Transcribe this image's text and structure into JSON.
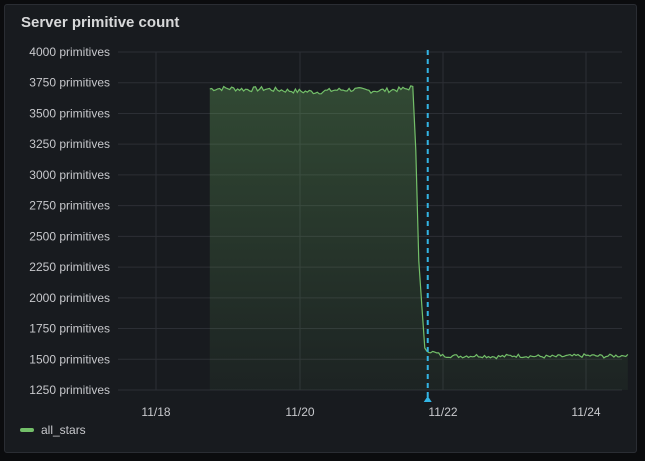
{
  "panel": {
    "title": "Server primitive count"
  },
  "chart_data": {
    "type": "area",
    "title": "Server primitive count",
    "unit": "primitives",
    "y_ticks": [
      "4000 primitives",
      "3750 primitives",
      "3500 primitives",
      "3250 primitives",
      "3000 primitives",
      "2750 primitives",
      "2500 primitives",
      "2250 primitives",
      "2000 primitives",
      "1750 primitives",
      "1500 primitives",
      "1250 primitives"
    ],
    "x_ticks": [
      "11/18",
      "11/20",
      "11/22",
      "11/24"
    ],
    "ylim": [
      1250,
      4000
    ],
    "grid": true,
    "legend_position": "bottom-left",
    "series": [
      {
        "name": "all_stars",
        "color": "#73bf69",
        "points": [
          [
            "11/18 18:00",
            3700
          ],
          [
            "11/19 00:00",
            3705
          ],
          [
            "11/19 06:00",
            3695
          ],
          [
            "11/19 12:00",
            3700
          ],
          [
            "11/19 18:00",
            3690
          ],
          [
            "11/20 00:00",
            3680
          ],
          [
            "11/20 06:00",
            3675
          ],
          [
            "11/20 12:00",
            3690
          ],
          [
            "11/20 18:00",
            3695
          ],
          [
            "11/21 00:00",
            3685
          ],
          [
            "11/21 06:00",
            3690
          ],
          [
            "11/21 12:00",
            3700
          ],
          [
            "11/21 14:00",
            3720
          ],
          [
            "11/21 15:00",
            3200
          ],
          [
            "11/21 16:00",
            2300
          ],
          [
            "11/21 18:00",
            1580
          ],
          [
            "11/22 00:00",
            1530
          ],
          [
            "11/22 06:00",
            1525
          ],
          [
            "11/22 12:00",
            1530
          ],
          [
            "11/22 18:00",
            1520
          ],
          [
            "11/23 00:00",
            1530
          ],
          [
            "11/23 06:00",
            1525
          ],
          [
            "11/23 12:00",
            1520
          ],
          [
            "11/23 18:00",
            1525
          ],
          [
            "11/24 00:00",
            1530
          ],
          [
            "11/24 06:00",
            1525
          ],
          [
            "11/24 12:00",
            1530
          ],
          [
            "11/24 14:00",
            1540
          ]
        ]
      }
    ],
    "annotation": {
      "type": "dashed-vertical-marker",
      "color": "#33b5e5",
      "x": "11/21 19:00"
    }
  },
  "legend": {
    "items": [
      {
        "label": "all_stars",
        "color": "#73bf69"
      }
    ]
  }
}
